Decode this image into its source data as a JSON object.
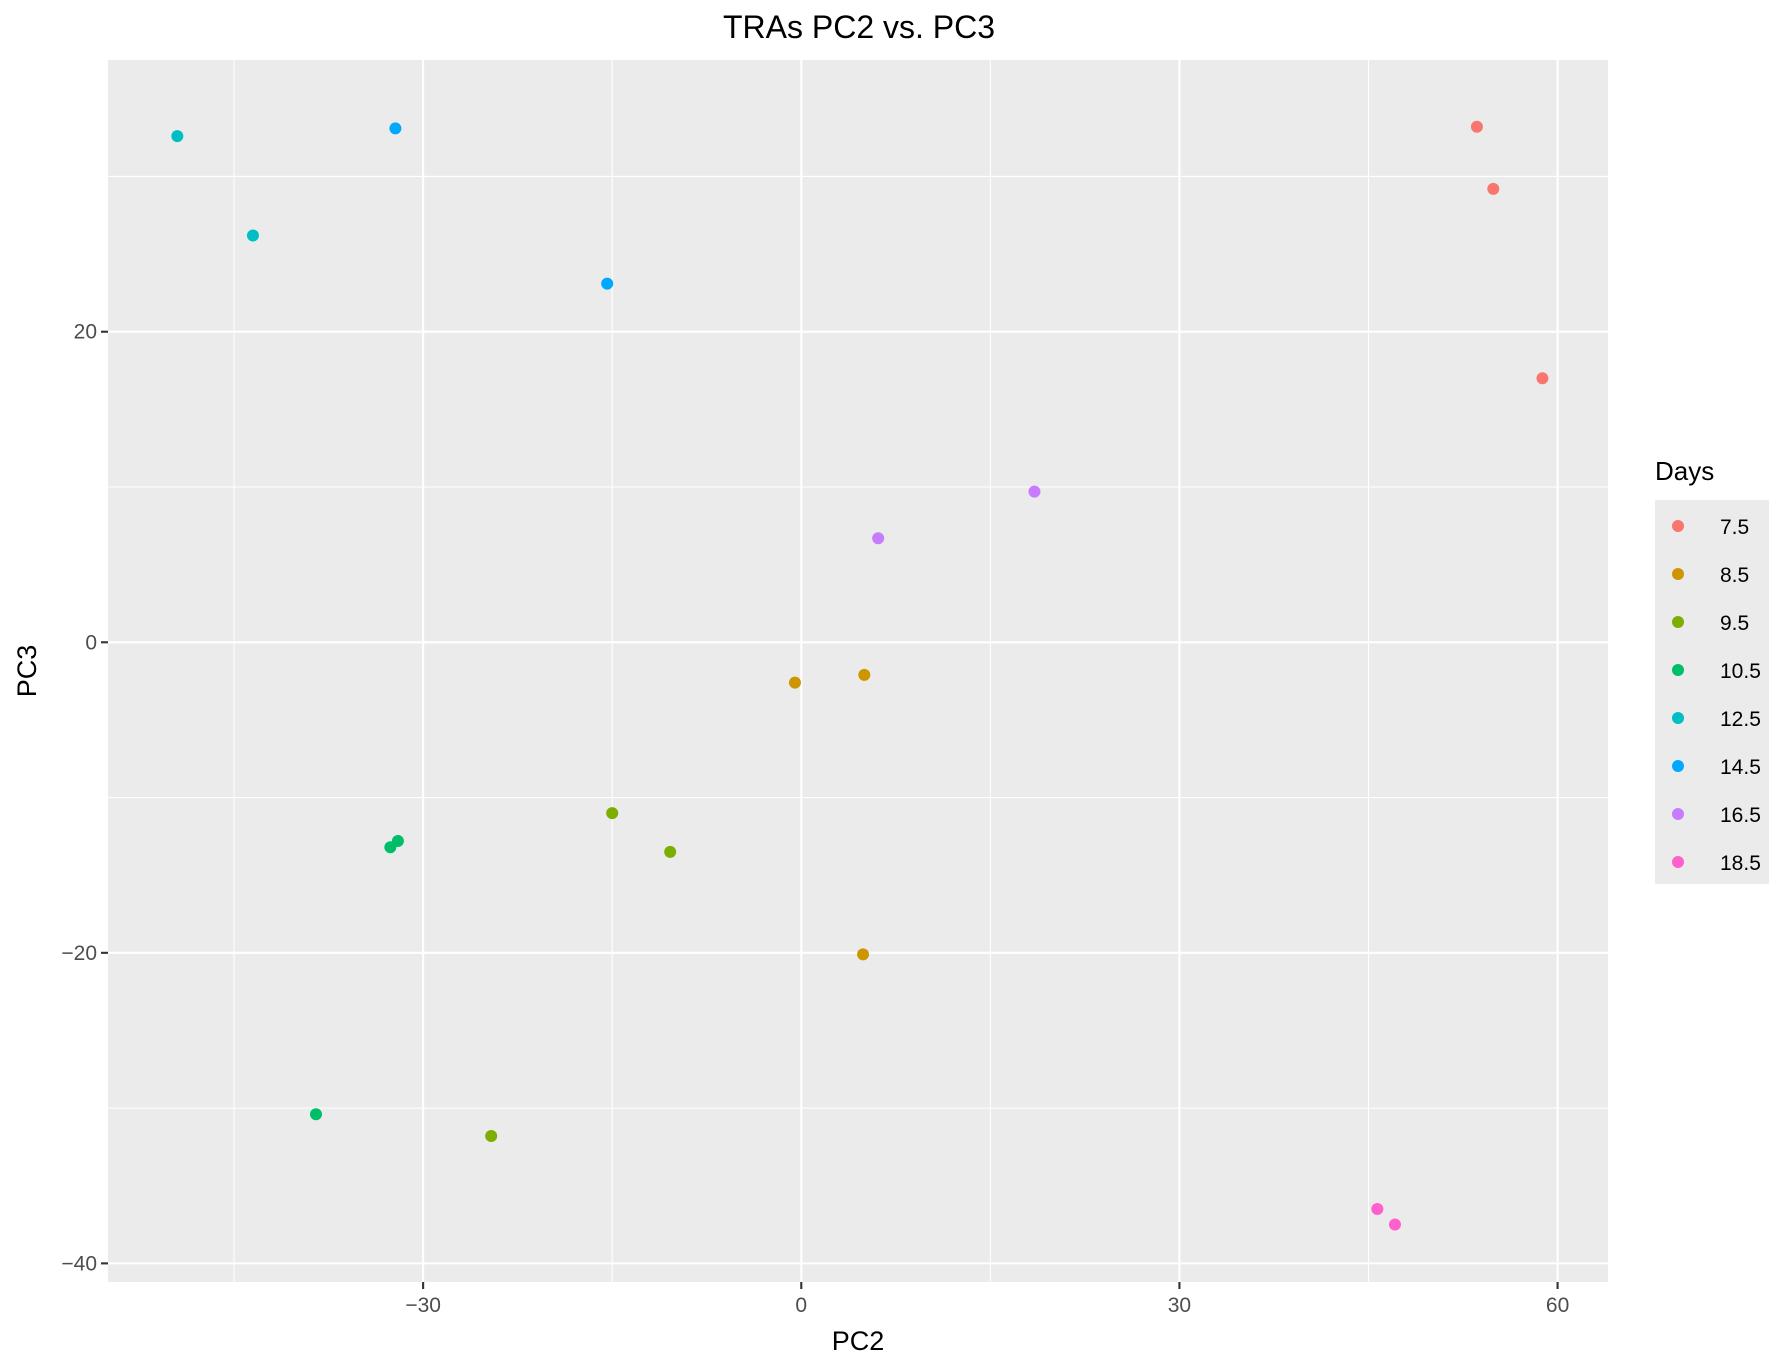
{
  "chart_data": {
    "type": "scatter",
    "title": "TRAs PC2 vs. PC3",
    "xlabel": "PC2",
    "ylabel": "PC3",
    "xlim": [
      -55,
      64
    ],
    "ylim": [
      -41.2,
      37.5
    ],
    "x_ticks": [
      -30,
      0,
      30,
      60
    ],
    "x_tick_labels": [
      "−30",
      "0",
      "30",
      "60"
    ],
    "y_ticks": [
      -40,
      -20,
      0,
      20
    ],
    "y_tick_labels": [
      "−40",
      "−20",
      "0",
      "20"
    ],
    "x_minor_ticks": [
      -45,
      -15,
      15,
      45
    ],
    "y_minor_ticks": [
      -30,
      -10,
      10,
      30
    ],
    "grid": true,
    "legend": {
      "title": "Days",
      "position": "right"
    },
    "series": [
      {
        "name": "7.5",
        "color": "#F8766D",
        "points": [
          [
            53.6,
            33.2
          ],
          [
            54.9,
            29.2
          ],
          [
            58.8,
            17.0
          ]
        ]
      },
      {
        "name": "8.5",
        "color": "#CD9600",
        "points": [
          [
            -0.5,
            -2.6
          ],
          [
            5.0,
            -2.1
          ],
          [
            4.9,
            -20.1
          ]
        ]
      },
      {
        "name": "9.5",
        "color": "#7CAE00",
        "points": [
          [
            -15.0,
            -11.0
          ],
          [
            -10.4,
            -13.5
          ],
          [
            -24.6,
            -31.8
          ]
        ]
      },
      {
        "name": "10.5",
        "color": "#00BE67",
        "points": [
          [
            -32.0,
            -12.8
          ],
          [
            -32.6,
            -13.2
          ],
          [
            -38.5,
            -30.4
          ]
        ]
      },
      {
        "name": "12.5",
        "color": "#00BFC4",
        "points": [
          [
            -49.5,
            32.6
          ],
          [
            -43.5,
            26.2
          ]
        ]
      },
      {
        "name": "14.5",
        "color": "#00A9FF",
        "points": [
          [
            -32.2,
            33.1
          ],
          [
            -15.4,
            23.1
          ]
        ]
      },
      {
        "name": "16.5",
        "color": "#C77CFF",
        "points": [
          [
            6.1,
            6.7
          ],
          [
            18.5,
            9.7
          ]
        ]
      },
      {
        "name": "18.5",
        "color": "#FF61CC",
        "points": [
          [
            45.7,
            -36.5
          ],
          [
            47.1,
            -37.5
          ]
        ]
      }
    ]
  }
}
